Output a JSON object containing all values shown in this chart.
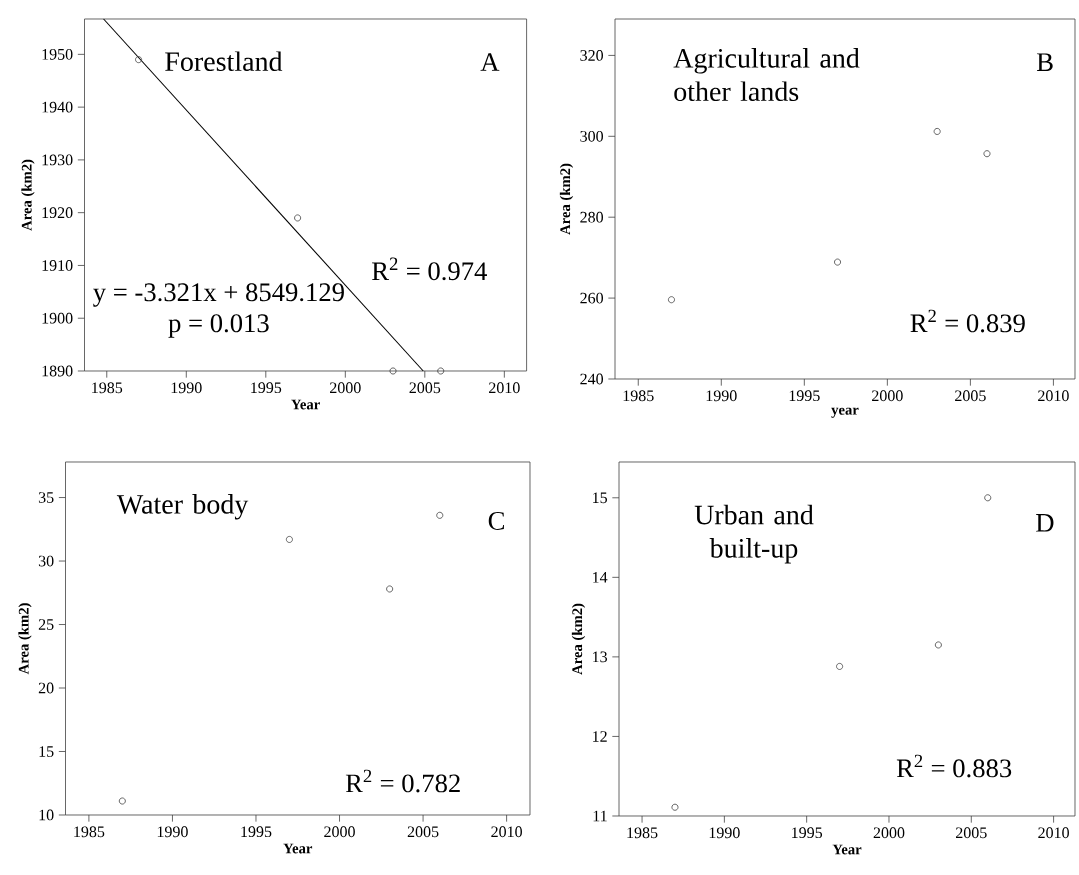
{
  "chart_data": [
    {
      "type": "scatter",
      "title": "Forestland",
      "xlabel": "Year",
      "ylabel": "Area (km2)",
      "xlim": [
        1983.6,
        2011.4
      ],
      "xticks": [
        1985,
        1990,
        1995,
        2000,
        2005,
        2010
      ],
      "ylim": [
        1890,
        1956.7
      ],
      "yticks": [
        1890,
        1900,
        1910,
        1920,
        1930,
        1940,
        1950
      ],
      "annotations": [
        "A",
        "y = -3.321x + 8549.129",
        "p = 0.013",
        "R$^{2}$ = 0.974"
      ],
      "series": [
        {
          "color": "#404040",
          "marker": "circle",
          "x": [
            1987,
            1997,
            2003,
            2006
          ],
          "values": [
            1949.0,
            1919.0,
            1890,
            1890
          ]
        },
        {
          "type": "line",
          "marker": "none",
          "color": "#000000",
          "x": [
            1984.8,
            2004.9
          ],
          "values": [
            1956.7,
            1890
          ]
        }
      ]
    },
    {
      "type": "scatter",
      "title": "Agricultural and other lands",
      "xlabel": "year",
      "ylabel": "Area (km2)",
      "marker": "circle",
      "xlim": [
        1983.6,
        2011.3
      ],
      "xticks": [
        1985,
        1990,
        1995,
        2000,
        2005,
        2010
      ],
      "ylim": [
        240,
        329
      ],
      "yticks": [
        240,
        260,
        280,
        300,
        320
      ],
      "annotations": [
        "B",
        "R$^{2}$ = 0.839"
      ],
      "series": [
        {
          "color": "#404040",
          "x": [
            1987,
            1997,
            2003,
            2006
          ],
          "values": [
            259.6,
            268.9,
            301.2,
            295.7
          ]
        }
      ]
    },
    {
      "type": "scatter",
      "title": "Water body",
      "xlabel": "Year",
      "ylabel": "Area (km2)",
      "marker": "circle",
      "xlim": [
        1983.6,
        2011.4
      ],
      "xticks": [
        1985,
        1990,
        1995,
        2000,
        2005,
        2010
      ],
      "ylim": [
        10,
        37.8
      ],
      "yticks": [
        10,
        15,
        20,
        25,
        30,
        35
      ],
      "annotations": [
        "C",
        "R$^{2}$ = 0.782"
      ],
      "series": [
        {
          "color": "#404040",
          "x": [
            1987,
            1997,
            2003,
            2006
          ],
          "values": [
            11.1,
            31.7,
            27.8,
            33.6
          ]
        }
      ]
    },
    {
      "type": "scatter",
      "title": "Urban and built-up",
      "xlabel": "Year",
      "ylabel": "Area (km2)",
      "marker": "circle",
      "xlim": [
        1983.6,
        2011.3
      ],
      "xticks": [
        1985,
        1990,
        1995,
        2000,
        2005,
        2010
      ],
      "ylim": [
        11,
        15.45
      ],
      "yticks": [
        11,
        12,
        13,
        14,
        15
      ],
      "annotations": [
        "D",
        "R$^{2}$ = 0.883"
      ],
      "series": [
        {
          "color": "#404040",
          "x": [
            1987,
            1997,
            2003,
            2006
          ],
          "values": [
            11.11,
            12.88,
            13.15,
            15.0
          ]
        }
      ]
    }
  ]
}
